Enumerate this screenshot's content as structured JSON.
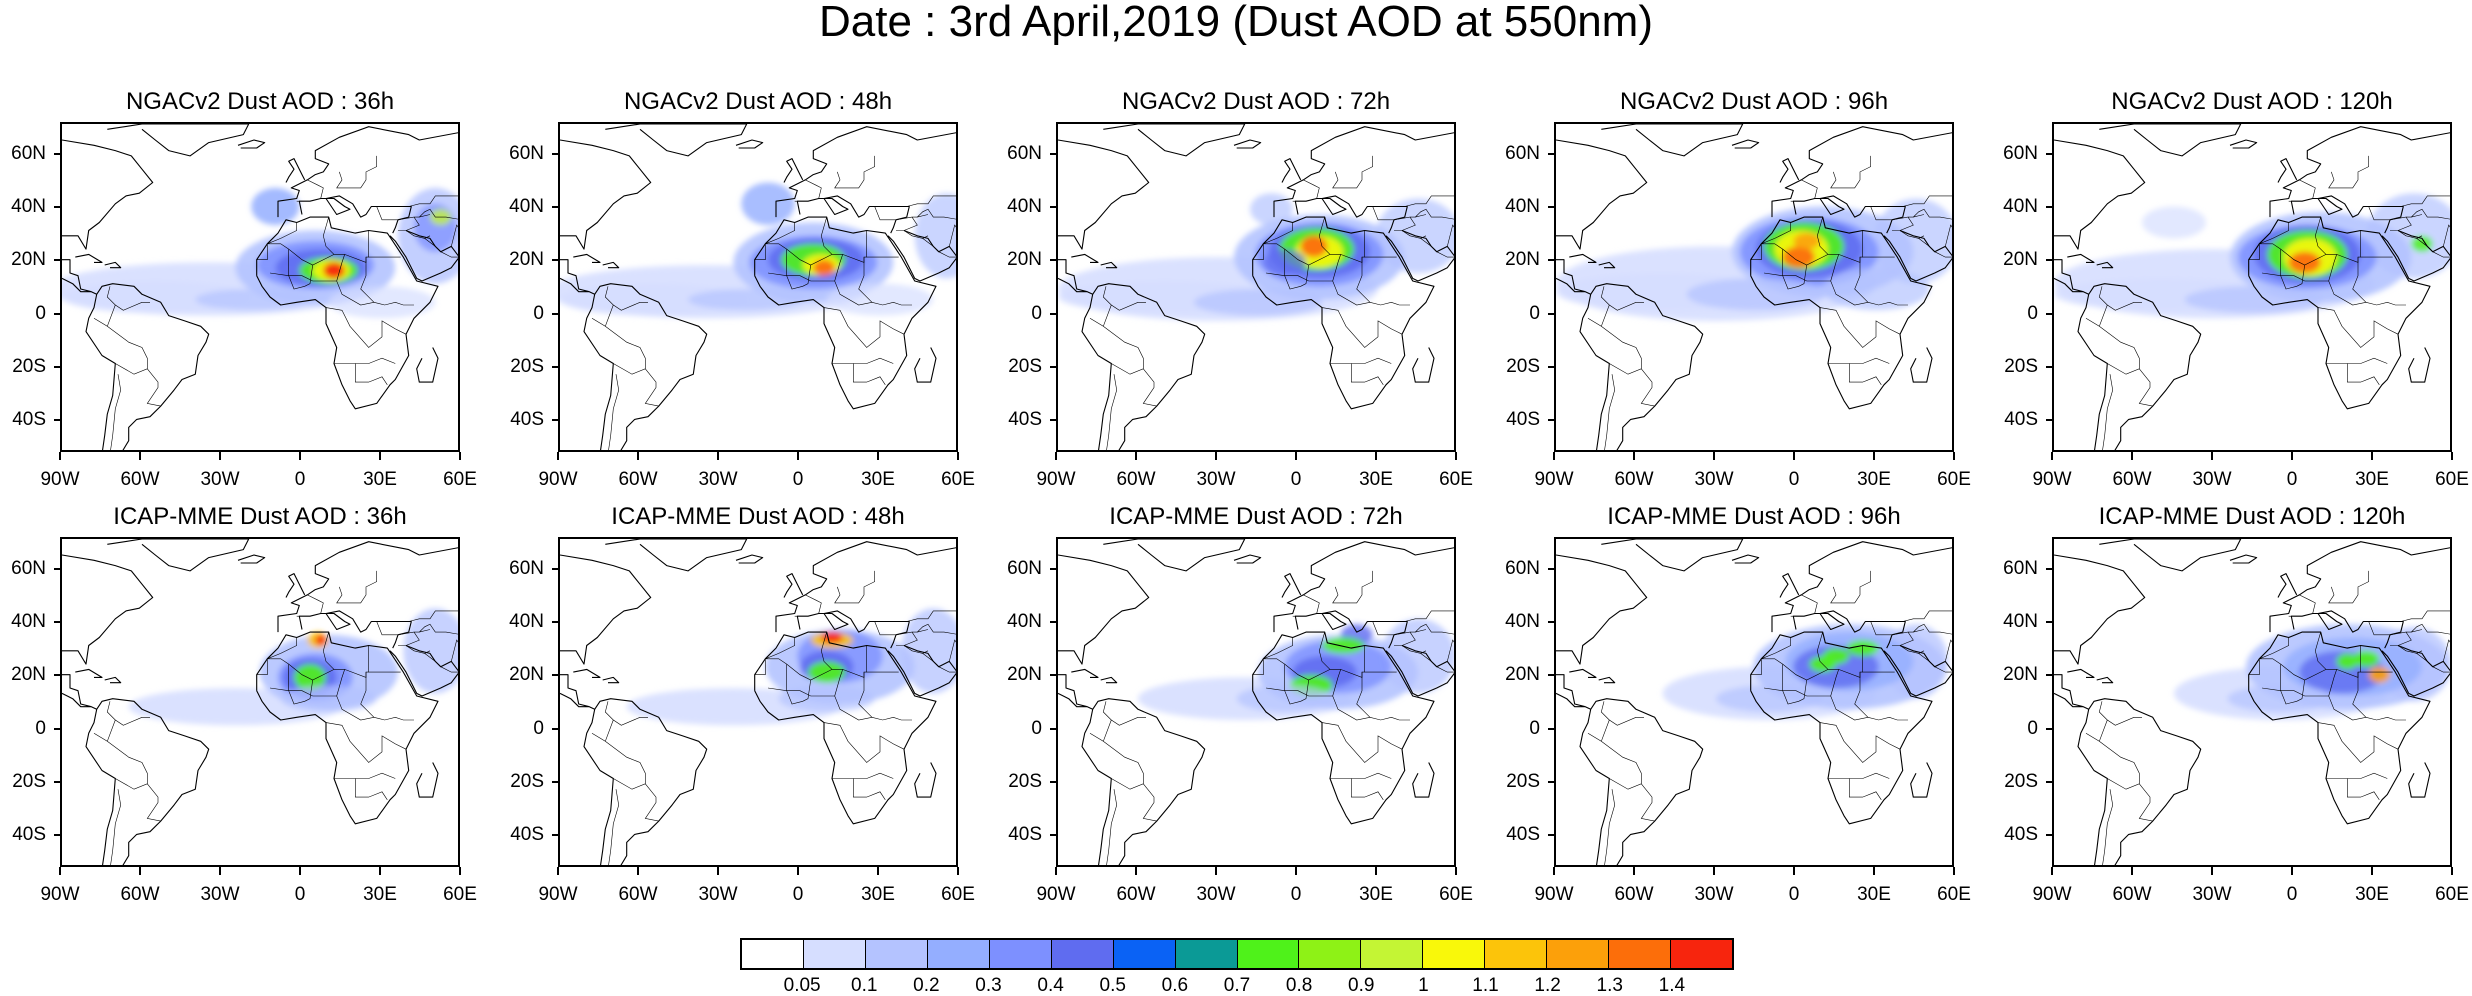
{
  "title": "Date : 3rd April,2019 (Dust AOD at 550nm)",
  "rows": [
    {
      "model": "NGACv2",
      "panels": [
        {
          "title": "NGACv2 Dust AOD : 36h",
          "forecast_hour": 36
        },
        {
          "title": "NGACv2 Dust AOD : 48h",
          "forecast_hour": 48
        },
        {
          "title": "NGACv2 Dust AOD : 72h",
          "forecast_hour": 72
        },
        {
          "title": "NGACv2 Dust AOD : 96h",
          "forecast_hour": 96
        },
        {
          "title": "NGACv2 Dust AOD : 120h",
          "forecast_hour": 120
        }
      ]
    },
    {
      "model": "ICAP-MME",
      "panels": [
        {
          "title": "ICAP-MME Dust AOD : 36h",
          "forecast_hour": 36
        },
        {
          "title": "ICAP-MME Dust AOD : 48h",
          "forecast_hour": 48
        },
        {
          "title": "ICAP-MME Dust AOD : 72h",
          "forecast_hour": 72
        },
        {
          "title": "ICAP-MME Dust AOD : 96h",
          "forecast_hour": 96
        },
        {
          "title": "ICAP-MME Dust AOD : 120h",
          "forecast_hour": 120
        }
      ]
    }
  ],
  "lat_ticks": [
    "60N",
    "40N",
    "20N",
    "0",
    "20S",
    "40S"
  ],
  "lon_ticks": [
    "90W",
    "60W",
    "30W",
    "0",
    "30E",
    "60E"
  ],
  "colorbar": {
    "labels": [
      "0.05",
      "0.1",
      "0.2",
      "0.3",
      "0.4",
      "0.5",
      "0.6",
      "0.7",
      "0.8",
      "0.9",
      "1",
      "1.1",
      "1.2",
      "1.3",
      "1.4"
    ],
    "colors": [
      "#ffffff",
      "#d6deff",
      "#b4c3ff",
      "#94aeff",
      "#7d90ff",
      "#5f6cf0",
      "#0a62f5",
      "#0b9a96",
      "#4ff21a",
      "#8ef216",
      "#c4f534",
      "#f9f80a",
      "#fcc40a",
      "#fca00a",
      "#fc6e0a",
      "#f7250d"
    ]
  }
}
